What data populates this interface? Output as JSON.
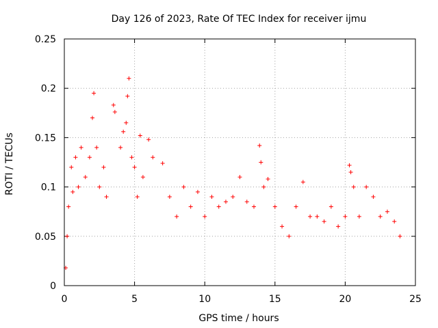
{
  "chart_data": {
    "type": "scatter",
    "title": "Day 126 of 2023, Rate Of TEC Index for receiver ijmu",
    "xlabel": "GPS time / hours",
    "ylabel": "ROTI / TECUs",
    "xlim": [
      0,
      25
    ],
    "ylim": [
      0,
      0.25
    ],
    "xticks": [
      0,
      5,
      10,
      15,
      20,
      25
    ],
    "xtick_labels": [
      "0",
      "5",
      "10",
      "15",
      "20",
      "25"
    ],
    "yticks": [
      0,
      0.05,
      0.1,
      0.15,
      0.2,
      0.25
    ],
    "ytick_labels": [
      "0",
      "0.05",
      "0.1",
      "0.15",
      "0.2",
      "0.25"
    ],
    "grid": true,
    "marker": "+",
    "series": [
      {
        "color": "#ff0000",
        "points": [
          [
            0.1,
            0.018
          ],
          [
            0.2,
            0.05
          ],
          [
            0.3,
            0.08
          ],
          [
            0.5,
            0.12
          ],
          [
            0.6,
            0.095
          ],
          [
            0.8,
            0.13
          ],
          [
            1.0,
            0.1
          ],
          [
            1.2,
            0.14
          ],
          [
            1.5,
            0.11
          ],
          [
            1.8,
            0.13
          ],
          [
            2.0,
            0.17
          ],
          [
            2.1,
            0.195
          ],
          [
            2.3,
            0.14
          ],
          [
            2.5,
            0.1
          ],
          [
            2.8,
            0.12
          ],
          [
            3.0,
            0.09
          ],
          [
            3.5,
            0.183
          ],
          [
            3.6,
            0.176
          ],
          [
            4.0,
            0.14
          ],
          [
            4.2,
            0.156
          ],
          [
            4.4,
            0.165
          ],
          [
            4.5,
            0.192
          ],
          [
            4.6,
            0.21
          ],
          [
            4.8,
            0.13
          ],
          [
            5.0,
            0.12
          ],
          [
            5.2,
            0.09
          ],
          [
            5.4,
            0.152
          ],
          [
            5.6,
            0.11
          ],
          [
            6.0,
            0.148
          ],
          [
            6.3,
            0.13
          ],
          [
            7.0,
            0.124
          ],
          [
            7.5,
            0.09
          ],
          [
            8.0,
            0.07
          ],
          [
            8.5,
            0.1
          ],
          [
            9.0,
            0.08
          ],
          [
            9.5,
            0.095
          ],
          [
            10.0,
            0.07
          ],
          [
            10.5,
            0.09
          ],
          [
            11.0,
            0.08
          ],
          [
            11.5,
            0.085
          ],
          [
            12.0,
            0.09
          ],
          [
            12.5,
            0.11
          ],
          [
            13.0,
            0.085
          ],
          [
            13.5,
            0.08
          ],
          [
            13.9,
            0.142
          ],
          [
            14.0,
            0.125
          ],
          [
            14.2,
            0.1
          ],
          [
            14.5,
            0.108
          ],
          [
            15.0,
            0.08
          ],
          [
            15.5,
            0.06
          ],
          [
            16.0,
            0.05
          ],
          [
            16.5,
            0.08
          ],
          [
            17.0,
            0.105
          ],
          [
            17.5,
            0.07
          ],
          [
            18.0,
            0.07
          ],
          [
            18.5,
            0.065
          ],
          [
            19.0,
            0.08
          ],
          [
            19.5,
            0.06
          ],
          [
            20.0,
            0.07
          ],
          [
            20.3,
            0.122
          ],
          [
            20.4,
            0.115
          ],
          [
            20.6,
            0.1
          ],
          [
            21.0,
            0.07
          ],
          [
            21.5,
            0.1
          ],
          [
            22.0,
            0.09
          ],
          [
            22.5,
            0.07
          ],
          [
            23.0,
            0.075
          ],
          [
            23.5,
            0.065
          ],
          [
            23.9,
            0.05
          ]
        ]
      }
    ]
  }
}
